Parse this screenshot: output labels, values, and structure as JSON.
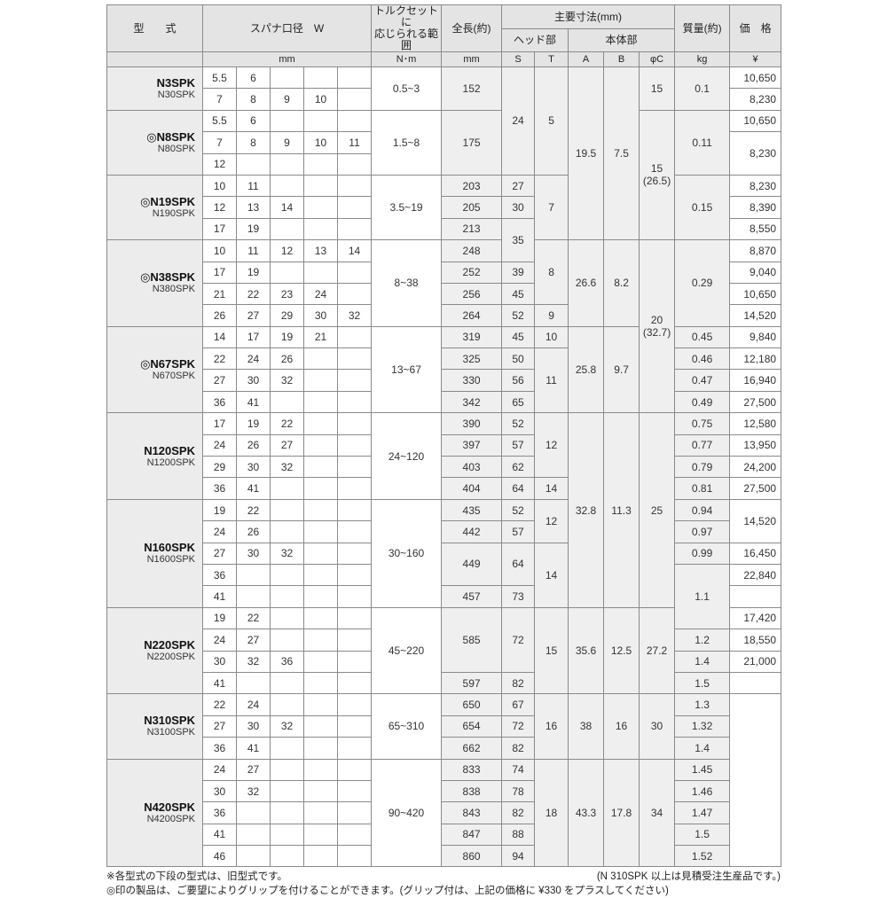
{
  "header": {
    "model": "型　　式",
    "spanner": "スパナ口径　W",
    "torque_line1": "トルクセットに",
    "torque_line2": "応じられる範囲",
    "length": "全長(約)",
    "main_dims": "主要寸法(mm)",
    "head": "ヘッド部",
    "body": "本体部",
    "mass": "質量(約)",
    "price": "価　格",
    "units": {
      "w": "mm",
      "torque": "N･m",
      "length": "mm",
      "s": "S",
      "t": "T",
      "a": "A",
      "b": "B",
      "c": "φC",
      "mass": "kg",
      "price": "¥"
    }
  },
  "groups": [
    {
      "mark": "",
      "name": "N3SPK",
      "old": "N30SPK",
      "torque": "0.5~3",
      "w": [
        [
          "5.5",
          "6"
        ],
        [
          "7",
          "8",
          "9",
          "10"
        ]
      ]
    },
    {
      "mark": "◎",
      "name": "N8SPK",
      "old": "N80SPK",
      "torque": "1.5~8",
      "w": [
        [
          "5.5",
          "6"
        ],
        [
          "7",
          "8",
          "9",
          "10",
          "11"
        ],
        [
          "12"
        ]
      ]
    },
    {
      "mark": "◎",
      "name": "N19SPK",
      "old": "N190SPK",
      "torque": "3.5~19",
      "w": [
        [
          "10",
          "11"
        ],
        [
          "12",
          "13",
          "14"
        ],
        [
          "17",
          "19"
        ]
      ]
    },
    {
      "mark": "◎",
      "name": "N38SPK",
      "old": "N380SPK",
      "torque": "8~38",
      "w": [
        [
          "10",
          "11",
          "12",
          "13",
          "14"
        ],
        [
          "17",
          "19"
        ],
        [
          "21",
          "22",
          "23",
          "24"
        ],
        [
          "26",
          "27",
          "29",
          "30",
          "32"
        ]
      ]
    },
    {
      "mark": "◎",
      "name": "N67SPK",
      "old": "N670SPK",
      "torque": "13~67",
      "w": [
        [
          "14",
          "17",
          "19",
          "21"
        ],
        [
          "22",
          "24",
          "26"
        ],
        [
          "27",
          "30",
          "32"
        ],
        [
          "36",
          "41"
        ]
      ]
    },
    {
      "mark": "",
      "name": "N120SPK",
      "old": "N1200SPK",
      "torque": "24~120",
      "w": [
        [
          "17",
          "19",
          "22"
        ],
        [
          "24",
          "26",
          "27"
        ],
        [
          "29",
          "30",
          "32"
        ],
        [
          "36",
          "41"
        ]
      ]
    },
    {
      "mark": "",
      "name": "N160SPK",
      "old": "N1600SPK",
      "torque": "30~160",
      "w": [
        [
          "19",
          "22"
        ],
        [
          "24",
          "26"
        ],
        [
          "27",
          "30",
          "32"
        ],
        [
          "36"
        ],
        [
          "41"
        ]
      ]
    },
    {
      "mark": "",
      "name": "N220SPK",
      "old": "N2200SPK",
      "torque": "45~220",
      "w": [
        [
          "19",
          "22"
        ],
        [
          "24",
          "27"
        ],
        [
          "30",
          "32",
          "36"
        ],
        [
          "41"
        ]
      ]
    },
    {
      "mark": "",
      "name": "N310SPK",
      "old": "N3100SPK",
      "torque": "65~310",
      "w": [
        [
          "22",
          "24"
        ],
        [
          "27",
          "30",
          "32"
        ],
        [
          "36",
          "41"
        ]
      ]
    },
    {
      "mark": "",
      "name": "N420SPK",
      "old": "N4200SPK",
      "torque": "90~420",
      "w": [
        [
          "24",
          "27"
        ],
        [
          "30",
          "32"
        ],
        [
          "36"
        ],
        [
          "41"
        ],
        [
          "46"
        ]
      ]
    }
  ],
  "columns": {
    "length": [
      [
        "152",
        2
      ],
      [
        "175",
        3
      ],
      [
        "203",
        1
      ],
      [
        "205",
        1
      ],
      [
        "213",
        1
      ],
      [
        "248",
        1
      ],
      [
        "252",
        1
      ],
      [
        "256",
        1
      ],
      [
        "264",
        1
      ],
      [
        "319",
        1
      ],
      [
        "325",
        1
      ],
      [
        "330",
        1
      ],
      [
        "342",
        1
      ],
      [
        "390",
        1
      ],
      [
        "397",
        1
      ],
      [
        "403",
        1
      ],
      [
        "404",
        1
      ],
      [
        "435",
        1
      ],
      [
        "442",
        1
      ],
      [
        "449",
        2
      ],
      [
        "457",
        1
      ],
      [
        "585",
        3
      ],
      [
        "597",
        1
      ],
      [
        "650",
        1
      ],
      [
        "654",
        1
      ],
      [
        "662",
        1
      ],
      [
        "833",
        1
      ],
      [
        "838",
        1
      ],
      [
        "843",
        1
      ],
      [
        "847",
        1
      ],
      [
        "860",
        1
      ]
    ],
    "s": [
      [
        "24",
        5
      ],
      [
        "27",
        1
      ],
      [
        "30",
        1
      ],
      [
        "35",
        2
      ],
      [
        "39",
        1
      ],
      [
        "45",
        1
      ],
      [
        "52",
        1
      ],
      [
        "45",
        1
      ],
      [
        "50",
        1
      ],
      [
        "56",
        1
      ],
      [
        "65",
        1
      ],
      [
        "52",
        1
      ],
      [
        "57",
        1
      ],
      [
        "62",
        1
      ],
      [
        "64",
        1
      ],
      [
        "52",
        1
      ],
      [
        "57",
        1
      ],
      [
        "64",
        2
      ],
      [
        "73",
        1
      ],
      [
        "72",
        3
      ],
      [
        "82",
        1
      ],
      [
        "67",
        1
      ],
      [
        "72",
        1
      ],
      [
        "82",
        1
      ],
      [
        "74",
        1
      ],
      [
        "78",
        1
      ],
      [
        "82",
        1
      ],
      [
        "88",
        1
      ],
      [
        "94",
        1
      ]
    ],
    "t": [
      [
        "5",
        5
      ],
      [
        "7",
        3
      ],
      [
        "8",
        3
      ],
      [
        "9",
        1
      ],
      [
        "10",
        1
      ],
      [
        "11",
        3
      ],
      [
        "12",
        3
      ],
      [
        "14",
        1
      ],
      [
        "12",
        2
      ],
      [
        "14",
        3
      ],
      [
        "15",
        4
      ],
      [
        "16",
        3
      ],
      [
        "18",
        5
      ]
    ],
    "a": [
      [
        "19.5",
        8
      ],
      [
        "26.6",
        4
      ],
      [
        "25.8",
        4
      ],
      [
        "32.8",
        9
      ],
      [
        "35.6",
        4
      ],
      [
        "38",
        3
      ],
      [
        "43.3",
        5
      ]
    ],
    "b": [
      [
        "7.5",
        8
      ],
      [
        "8.2",
        4
      ],
      [
        "9.7",
        4
      ],
      [
        "11.3",
        9
      ],
      [
        "12.5",
        4
      ],
      [
        "16",
        3
      ],
      [
        "17.8",
        5
      ]
    ],
    "c": [
      [
        "15",
        2
      ],
      [
        "15\n(26.5)",
        6
      ],
      [
        "20\n(32.7)",
        8
      ],
      [
        "25",
        9
      ],
      [
        "27.2",
        4
      ],
      [
        "30",
        3
      ],
      [
        "34",
        5
      ]
    ],
    "mass": [
      [
        "0.1",
        2
      ],
      [
        "0.11",
        3
      ],
      [
        "0.15",
        3
      ],
      [
        "0.29",
        4
      ],
      [
        "0.45",
        1
      ],
      [
        "0.46",
        1
      ],
      [
        "0.47",
        1
      ],
      [
        "0.49",
        1
      ],
      [
        "0.75",
        1
      ],
      [
        "0.77",
        1
      ],
      [
        "0.79",
        1
      ],
      [
        "0.81",
        1
      ],
      [
        "0.94",
        1
      ],
      [
        "0.97",
        1
      ],
      [
        "0.99",
        1
      ],
      [
        "1.1",
        3
      ],
      [
        "1.2",
        1
      ],
      [
        "1.4",
        1
      ],
      [
        "1.5",
        1
      ],
      [
        "1.3",
        1
      ],
      [
        "1.32",
        1
      ],
      [
        "1.4",
        1
      ],
      [
        "1.45",
        1
      ],
      [
        "1.46",
        1
      ],
      [
        "1.47",
        1
      ],
      [
        "1.5",
        1
      ],
      [
        "1.52",
        1
      ]
    ],
    "price": [
      [
        "10,650",
        1
      ],
      [
        "8,230",
        1
      ],
      [
        "10,650",
        1
      ],
      [
        "8,230",
        2
      ],
      [
        "8,230",
        1
      ],
      [
        "8,390",
        1
      ],
      [
        "8,550",
        1
      ],
      [
        "8,870",
        1
      ],
      [
        "9,040",
        1
      ],
      [
        "10,650",
        1
      ],
      [
        "14,520",
        1
      ],
      [
        "9,840",
        1
      ],
      [
        "12,180",
        1
      ],
      [
        "16,940",
        1
      ],
      [
        "27,500",
        1
      ],
      [
        "12,580",
        1
      ],
      [
        "13,950",
        1
      ],
      [
        "24,200",
        1
      ],
      [
        "27,500",
        1
      ],
      [
        "14,520",
        2
      ],
      [
        "16,450",
        1
      ],
      [
        "22,840",
        1
      ],
      [
        "",
        1
      ],
      [
        "17,420",
        1
      ],
      [
        "18,550",
        1
      ],
      [
        "21,000",
        1
      ],
      [
        "",
        1
      ],
      [
        "",
        8
      ]
    ]
  },
  "notes": {
    "old_model": "※各型式の下段の型式は、旧型式です。",
    "made_to_order": "(N 310SPK 以上は見積受注生産品です。)",
    "grip": "◎印の製品は、ご要望によりグリップを付けることができます。(グリップ付は、上記の価格に ¥330 をプラスしてください)"
  }
}
